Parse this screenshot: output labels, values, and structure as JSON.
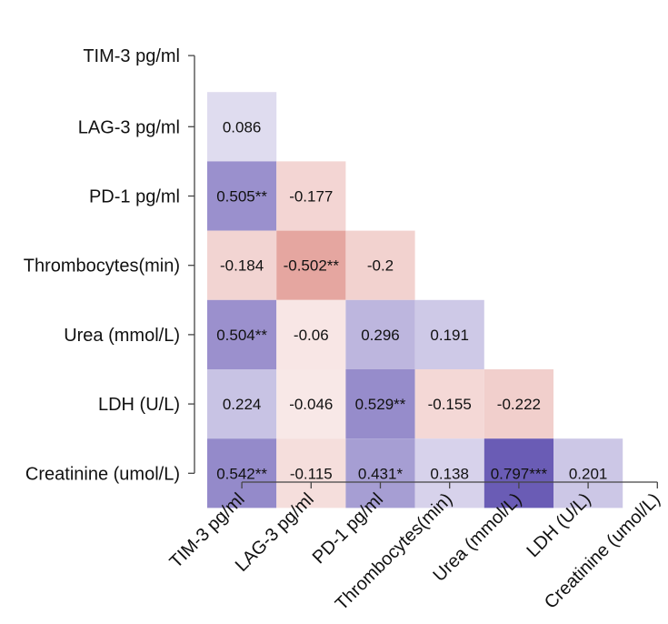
{
  "chart_data": {
    "type": "heatmap",
    "title": "",
    "xlabel": "",
    "ylabel": "",
    "x_categories": [
      "TIM-3 pg/ml",
      "LAG-3 pg/ml",
      "PD-1 pg/ml",
      "Thrombocytes(min)",
      "Urea (mmol/L)",
      "LDH (U/L)",
      "Creatinine (umol/L)"
    ],
    "y_categories": [
      "TIM-3 pg/ml",
      "LAG-3 pg/ml",
      "PD-1 pg/ml",
      "Thrombocytes(min)",
      "Urea (mmol/L)",
      "LDH (U/L)",
      "Creatinine (umol/L)"
    ],
    "layout": "lower-triangle",
    "color_scale": {
      "positive": "#6a5bb5",
      "negative": "#d87a72",
      "neutral": "#ffffff"
    },
    "cells": [
      {
        "row": "LAG-3 pg/ml",
        "col": "TIM-3 pg/ml",
        "value": 0.086,
        "label": "0.086"
      },
      {
        "row": "PD-1 pg/ml",
        "col": "TIM-3 pg/ml",
        "value": 0.505,
        "label": "0.505**"
      },
      {
        "row": "PD-1 pg/ml",
        "col": "LAG-3 pg/ml",
        "value": -0.177,
        "label": "-0.177"
      },
      {
        "row": "Thrombocytes(min)",
        "col": "TIM-3 pg/ml",
        "value": -0.184,
        "label": "-0.184"
      },
      {
        "row": "Thrombocytes(min)",
        "col": "LAG-3 pg/ml",
        "value": -0.502,
        "label": "-0.502**"
      },
      {
        "row": "Thrombocytes(min)",
        "col": "PD-1 pg/ml",
        "value": -0.2,
        "label": "-0.2"
      },
      {
        "row": "Urea (mmol/L)",
        "col": "TIM-3 pg/ml",
        "value": 0.504,
        "label": "0.504**"
      },
      {
        "row": "Urea (mmol/L)",
        "col": "LAG-3 pg/ml",
        "value": -0.06,
        "label": "-0.06"
      },
      {
        "row": "Urea (mmol/L)",
        "col": "PD-1 pg/ml",
        "value": 0.296,
        "label": "0.296"
      },
      {
        "row": "Urea (mmol/L)",
        "col": "Thrombocytes(min)",
        "value": 0.191,
        "label": "0.191"
      },
      {
        "row": "LDH (U/L)",
        "col": "TIM-3 pg/ml",
        "value": 0.224,
        "label": "0.224"
      },
      {
        "row": "LDH (U/L)",
        "col": "LAG-3 pg/ml",
        "value": -0.046,
        "label": "-0.046"
      },
      {
        "row": "LDH (U/L)",
        "col": "PD-1 pg/ml",
        "value": 0.529,
        "label": "0.529**"
      },
      {
        "row": "LDH (U/L)",
        "col": "Thrombocytes(min)",
        "value": -0.155,
        "label": "-0.155"
      },
      {
        "row": "LDH (U/L)",
        "col": "Urea (mmol/L)",
        "value": -0.222,
        "label": "-0.222"
      },
      {
        "row": "Creatinine (umol/L)",
        "col": "TIM-3 pg/ml",
        "value": 0.542,
        "label": "0.542**"
      },
      {
        "row": "Creatinine (umol/L)",
        "col": "LAG-3 pg/ml",
        "value": -0.115,
        "label": "-0.115"
      },
      {
        "row": "Creatinine (umol/L)",
        "col": "PD-1 pg/ml",
        "value": 0.431,
        "label": "0.431*"
      },
      {
        "row": "Creatinine (umol/L)",
        "col": "Thrombocytes(min)",
        "value": 0.138,
        "label": "0.138"
      },
      {
        "row": "Creatinine (umol/L)",
        "col": "Urea (mmol/L)",
        "value": 0.797,
        "label": "0.797***"
      },
      {
        "row": "Creatinine (umol/L)",
        "col": "LDH (U/L)",
        "value": 0.201,
        "label": "0.201"
      }
    ]
  }
}
